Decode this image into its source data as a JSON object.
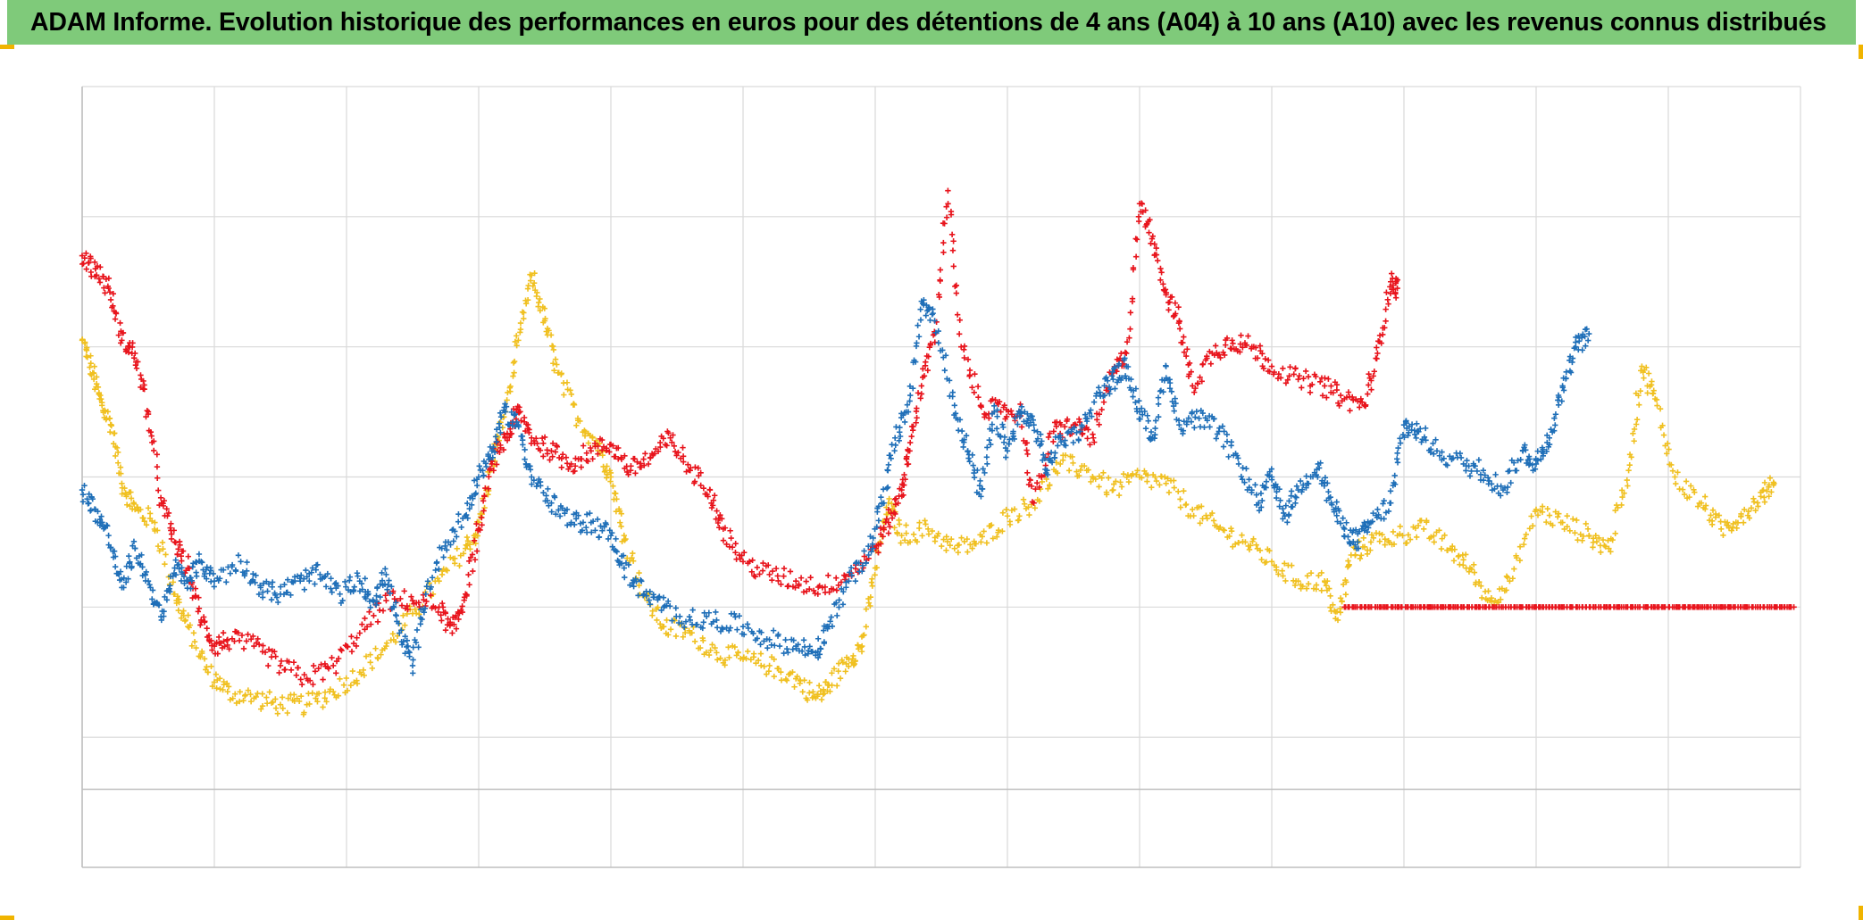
{
  "title": "ADAM Informe. Evolution historique des performances en euros pour des détentions de 4 ans (A04) à 10 ans (A10) avec les revenus connus distribués",
  "colors": {
    "title_bg": "#7fca7a",
    "grid": "#d9d9d9",
    "axis": "#bfbfbf",
    "corner_accent": "#f0b400"
  },
  "chart_data": {
    "type": "scatter",
    "marker": "plus",
    "xlim": [
      0,
      13
    ],
    "ylim": [
      -3,
      3
    ],
    "grid": true,
    "x_gridlines": 13,
    "y_gridlines": [
      -2,
      -1,
      0,
      1,
      2
    ],
    "tick_labels_visible": false,
    "legend": "none",
    "series": [
      {
        "color": "#f0c020",
        "points": [
          [
            0.0,
            1.05
          ],
          [
            0.08,
            0.8
          ],
          [
            0.15,
            0.55
          ],
          [
            0.22,
            0.4
          ],
          [
            0.3,
            -0.05
          ],
          [
            0.4,
            -0.25
          ],
          [
            0.55,
            -0.35
          ],
          [
            0.7,
            -0.9
          ],
          [
            0.8,
            -1.15
          ],
          [
            0.95,
            -1.5
          ],
          [
            1.1,
            -1.65
          ],
          [
            1.3,
            -1.7
          ],
          [
            1.5,
            -1.75
          ],
          [
            1.7,
            -1.75
          ],
          [
            1.9,
            -1.65
          ],
          [
            2.1,
            -1.5
          ],
          [
            2.3,
            -1.3
          ],
          [
            2.5,
            -1.05
          ],
          [
            2.7,
            -0.8
          ],
          [
            2.9,
            -0.55
          ],
          [
            3.0,
            -0.4
          ],
          [
            3.1,
            0.1
          ],
          [
            3.2,
            0.5
          ],
          [
            3.3,
            1.05
          ],
          [
            3.4,
            1.55
          ],
          [
            3.5,
            1.2
          ],
          [
            3.6,
            0.8
          ],
          [
            3.75,
            0.45
          ],
          [
            3.9,
            0.25
          ],
          [
            4.0,
            0.0
          ],
          [
            4.1,
            -0.45
          ],
          [
            4.25,
            -0.9
          ],
          [
            4.4,
            -1.15
          ],
          [
            4.6,
            -1.2
          ],
          [
            4.8,
            -1.35
          ],
          [
            5.0,
            -1.4
          ],
          [
            5.2,
            -1.45
          ],
          [
            5.4,
            -1.55
          ],
          [
            5.55,
            -1.7
          ],
          [
            5.65,
            -1.6
          ],
          [
            5.8,
            -1.4
          ],
          [
            5.9,
            -1.3
          ],
          [
            6.0,
            -0.7
          ],
          [
            6.1,
            -0.2
          ],
          [
            6.2,
            -0.45
          ],
          [
            6.4,
            -0.4
          ],
          [
            6.6,
            -0.55
          ],
          [
            6.8,
            -0.5
          ],
          [
            7.0,
            -0.3
          ],
          [
            7.2,
            -0.2
          ],
          [
            7.4,
            0.1
          ],
          [
            7.6,
            0.05
          ],
          [
            7.8,
            -0.1
          ],
          [
            8.0,
            0.0
          ],
          [
            8.2,
            -0.05
          ],
          [
            8.4,
            -0.25
          ],
          [
            8.6,
            -0.4
          ],
          [
            8.8,
            -0.5
          ],
          [
            9.0,
            -0.65
          ],
          [
            9.2,
            -0.8
          ],
          [
            9.4,
            -0.8
          ],
          [
            9.5,
            -1.1
          ],
          [
            9.6,
            -0.6
          ],
          [
            9.75,
            -0.5
          ],
          [
            9.95,
            -0.45
          ],
          [
            10.15,
            -0.4
          ],
          [
            10.35,
            -0.55
          ],
          [
            10.5,
            -0.7
          ],
          [
            10.65,
            -0.95
          ],
          [
            10.8,
            -0.8
          ],
          [
            11.0,
            -0.25
          ],
          [
            11.2,
            -0.35
          ],
          [
            11.4,
            -0.45
          ],
          [
            11.55,
            -0.55
          ],
          [
            11.7,
            0.05
          ],
          [
            11.8,
            0.85
          ],
          [
            11.9,
            0.6
          ],
          [
            12.05,
            0.0
          ],
          [
            12.25,
            -0.2
          ],
          [
            12.4,
            -0.4
          ],
          [
            12.55,
            -0.3
          ],
          [
            12.7,
            -0.15
          ],
          [
            12.8,
            -0.05
          ]
        ]
      },
      {
        "color": "#e8141c",
        "points": [
          [
            0.0,
            1.7
          ],
          [
            0.1,
            1.6
          ],
          [
            0.2,
            1.45
          ],
          [
            0.3,
            1.05
          ],
          [
            0.4,
            0.95
          ],
          [
            0.5,
            0.5
          ],
          [
            0.6,
            -0.2
          ],
          [
            0.7,
            -0.5
          ],
          [
            0.8,
            -0.7
          ],
          [
            0.9,
            -1.1
          ],
          [
            1.0,
            -1.3
          ],
          [
            1.1,
            -1.25
          ],
          [
            1.3,
            -1.3
          ],
          [
            1.5,
            -1.45
          ],
          [
            1.7,
            -1.55
          ],
          [
            1.9,
            -1.45
          ],
          [
            2.1,
            -1.2
          ],
          [
            2.3,
            -0.95
          ],
          [
            2.5,
            -0.95
          ],
          [
            2.7,
            -1.0
          ],
          [
            2.8,
            -1.2
          ],
          [
            2.9,
            -0.9
          ],
          [
            3.0,
            -0.4
          ],
          [
            3.1,
            0.1
          ],
          [
            3.2,
            0.3
          ],
          [
            3.3,
            0.5
          ],
          [
            3.4,
            0.3
          ],
          [
            3.55,
            0.2
          ],
          [
            3.7,
            0.1
          ],
          [
            3.85,
            0.2
          ],
          [
            4.0,
            0.25
          ],
          [
            4.15,
            0.05
          ],
          [
            4.3,
            0.15
          ],
          [
            4.45,
            0.3
          ],
          [
            4.6,
            0.05
          ],
          [
            4.75,
            -0.1
          ],
          [
            4.85,
            -0.4
          ],
          [
            5.0,
            -0.65
          ],
          [
            5.2,
            -0.75
          ],
          [
            5.4,
            -0.8
          ],
          [
            5.6,
            -0.85
          ],
          [
            5.8,
            -0.75
          ],
          [
            6.0,
            -0.55
          ],
          [
            6.1,
            -0.35
          ],
          [
            6.2,
            -0.1
          ],
          [
            6.25,
            0.2
          ],
          [
            6.35,
            0.7
          ],
          [
            6.45,
            1.1
          ],
          [
            6.55,
            2.2
          ],
          [
            6.65,
            1.0
          ],
          [
            6.8,
            0.55
          ],
          [
            6.95,
            0.5
          ],
          [
            7.1,
            0.5
          ],
          [
            7.2,
            -0.2
          ],
          [
            7.35,
            0.35
          ],
          [
            7.5,
            0.4
          ],
          [
            7.65,
            0.3
          ],
          [
            7.8,
            0.8
          ],
          [
            7.9,
            0.95
          ],
          [
            8.0,
            2.1
          ],
          [
            8.1,
            1.85
          ],
          [
            8.2,
            1.4
          ],
          [
            8.3,
            1.2
          ],
          [
            8.4,
            0.7
          ],
          [
            8.55,
            0.95
          ],
          [
            8.7,
            1.05
          ],
          [
            8.85,
            1.0
          ],
          [
            9.0,
            0.85
          ],
          [
            9.2,
            0.75
          ],
          [
            9.4,
            0.7
          ],
          [
            9.55,
            0.6
          ],
          [
            9.7,
            0.55
          ],
          [
            9.8,
            0.95
          ],
          [
            9.9,
            1.5
          ],
          [
            9.95,
            1.45
          ],
          [
            9.55,
            -1.0
          ],
          [
            9.75,
            -1.0
          ],
          [
            9.95,
            -1.0
          ],
          [
            10.15,
            -1.0
          ],
          [
            10.35,
            -1.0
          ],
          [
            10.55,
            -1.0
          ],
          [
            10.75,
            -1.0
          ],
          [
            10.95,
            -1.0
          ],
          [
            11.15,
            -1.0
          ],
          [
            11.35,
            -1.0
          ],
          [
            11.55,
            -1.0
          ],
          [
            11.75,
            -1.0
          ],
          [
            11.95,
            -1.0
          ],
          [
            12.15,
            -1.0
          ],
          [
            12.35,
            -1.0
          ],
          [
            12.55,
            -1.0
          ],
          [
            12.75,
            -1.0
          ],
          [
            12.95,
            -1.0
          ]
        ]
      },
      {
        "color": "#1f6fb8",
        "points": [
          [
            0.0,
            -0.1
          ],
          [
            0.1,
            -0.25
          ],
          [
            0.2,
            -0.45
          ],
          [
            0.3,
            -0.85
          ],
          [
            0.4,
            -0.55
          ],
          [
            0.5,
            -0.8
          ],
          [
            0.6,
            -1.1
          ],
          [
            0.7,
            -0.7
          ],
          [
            0.8,
            -0.8
          ],
          [
            0.9,
            -0.65
          ],
          [
            1.0,
            -0.8
          ],
          [
            1.2,
            -0.65
          ],
          [
            1.35,
            -0.85
          ],
          [
            1.5,
            -0.9
          ],
          [
            1.65,
            -0.8
          ],
          [
            1.8,
            -0.75
          ],
          [
            1.95,
            -0.9
          ],
          [
            2.1,
            -0.8
          ],
          [
            2.2,
            -0.95
          ],
          [
            2.3,
            -0.75
          ],
          [
            2.4,
            -1.2
          ],
          [
            2.5,
            -1.45
          ],
          [
            2.6,
            -0.9
          ],
          [
            2.75,
            -0.5
          ],
          [
            2.9,
            -0.3
          ],
          [
            3.0,
            0.0
          ],
          [
            3.1,
            0.2
          ],
          [
            3.2,
            0.5
          ],
          [
            3.3,
            0.4
          ],
          [
            3.4,
            0.0
          ],
          [
            3.55,
            -0.2
          ],
          [
            3.7,
            -0.35
          ],
          [
            3.85,
            -0.35
          ],
          [
            4.0,
            -0.45
          ],
          [
            4.1,
            -0.7
          ],
          [
            4.25,
            -0.9
          ],
          [
            4.4,
            -1.0
          ],
          [
            4.6,
            -1.1
          ],
          [
            4.8,
            -1.1
          ],
          [
            5.0,
            -1.15
          ],
          [
            5.2,
            -1.25
          ],
          [
            5.4,
            -1.3
          ],
          [
            5.55,
            -1.35
          ],
          [
            5.65,
            -1.15
          ],
          [
            5.8,
            -0.8
          ],
          [
            5.95,
            -0.6
          ],
          [
            6.05,
            -0.2
          ],
          [
            6.15,
            0.3
          ],
          [
            6.25,
            0.5
          ],
          [
            6.35,
            1.35
          ],
          [
            6.45,
            1.2
          ],
          [
            6.6,
            0.55
          ],
          [
            6.7,
            0.2
          ],
          [
            6.8,
            -0.15
          ],
          [
            6.9,
            0.5
          ],
          [
            7.0,
            0.2
          ],
          [
            7.1,
            0.5
          ],
          [
            7.2,
            0.4
          ],
          [
            7.3,
            0.05
          ],
          [
            7.4,
            0.3
          ],
          [
            7.55,
            0.35
          ],
          [
            7.7,
            0.65
          ],
          [
            7.8,
            0.75
          ],
          [
            7.9,
            0.85
          ],
          [
            8.0,
            0.5
          ],
          [
            8.1,
            0.3
          ],
          [
            8.2,
            0.85
          ],
          [
            8.3,
            0.4
          ],
          [
            8.45,
            0.45
          ],
          [
            8.6,
            0.35
          ],
          [
            8.75,
            0.1
          ],
          [
            8.9,
            -0.2
          ],
          [
            9.0,
            0.0
          ],
          [
            9.1,
            -0.3
          ],
          [
            9.2,
            -0.1
          ],
          [
            9.35,
            0.1
          ],
          [
            9.45,
            -0.2
          ],
          [
            9.55,
            -0.4
          ],
          [
            9.65,
            -0.5
          ],
          [
            9.75,
            -0.35
          ],
          [
            9.9,
            -0.2
          ],
          [
            10.0,
            0.4
          ],
          [
            10.1,
            0.35
          ],
          [
            10.25,
            0.2
          ],
          [
            10.45,
            0.1
          ],
          [
            10.6,
            0.05
          ],
          [
            10.75,
            -0.1
          ],
          [
            10.9,
            0.2
          ],
          [
            11.0,
            0.1
          ],
          [
            11.1,
            0.3
          ],
          [
            11.2,
            0.7
          ],
          [
            11.3,
            1.0
          ],
          [
            11.4,
            1.1
          ]
        ]
      }
    ]
  }
}
